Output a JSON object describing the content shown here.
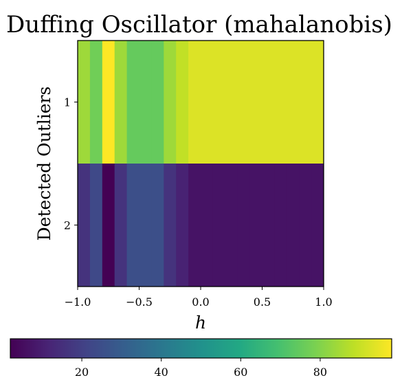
{
  "chart_data": {
    "type": "heatmap",
    "title": "Duffing Oscillator (mahalanobis)",
    "xlabel": "h",
    "ylabel": "Detected Outliers",
    "xlim": [
      -1.0,
      1.0
    ],
    "x_ticks": [
      "−1.0",
      "−0.5",
      "0.0",
      "0.5",
      "1.0"
    ],
    "x_tick_values": [
      -1.0,
      -0.5,
      0.0,
      0.5,
      1.0
    ],
    "rows": [
      "1",
      "2"
    ],
    "x_bin_edges": [
      -1.0,
      -0.9,
      -0.8,
      -0.7,
      -0.6,
      -0.5,
      -0.4,
      -0.3,
      -0.2,
      -0.1,
      0.0,
      0.1,
      0.2,
      0.3,
      0.4,
      0.5,
      0.6,
      0.7,
      0.8,
      0.9,
      1.0
    ],
    "values": [
      [
        84,
        77,
        98,
        84,
        75,
        75,
        75,
        84,
        89,
        93,
        93,
        93,
        93,
        93,
        93,
        93,
        93,
        93,
        93,
        93
      ],
      [
        16,
        23,
        2,
        16,
        25,
        25,
        25,
        16,
        11,
        7,
        7,
        7,
        7,
        7,
        7,
        7,
        7,
        7,
        7,
        7
      ]
    ],
    "colorbar": {
      "orientation": "horizontal",
      "colormap": "viridis",
      "range": [
        2,
        98
      ],
      "ticks": [
        20,
        40,
        60,
        80
      ],
      "tick_labels": [
        "20",
        "40",
        "60",
        "80"
      ]
    }
  }
}
